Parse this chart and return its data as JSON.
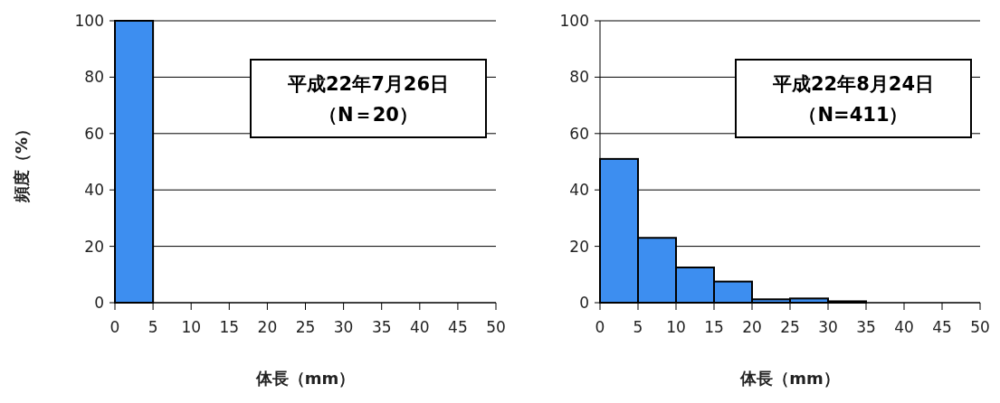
{
  "chart_data": [
    {
      "type": "histogram",
      "bins": [
        0,
        5,
        10,
        15,
        20,
        25,
        30,
        35,
        40,
        45,
        50
      ],
      "values": [
        100,
        0,
        0,
        0,
        0,
        0,
        0,
        0,
        0,
        0
      ],
      "color": "#3d8ef0",
      "xlim": [
        0,
        50
      ],
      "xticks": [
        0,
        5,
        10,
        15,
        20,
        25,
        30,
        35,
        40,
        45,
        50
      ],
      "ylim": [
        0,
        100
      ],
      "yticks": [
        0,
        20,
        40,
        60,
        80,
        100
      ],
      "grid": "y",
      "xlabel": "体長（mm）",
      "ylabel": "頻度（%）",
      "annotations": [
        "平成22年7月26日",
        "（N＝20）"
      ]
    },
    {
      "type": "histogram",
      "bins": [
        0,
        5,
        10,
        15,
        20,
        25,
        30,
        35,
        40,
        45,
        50
      ],
      "values": [
        51,
        23,
        12.5,
        7.5,
        1.2,
        1.5,
        0.5,
        0,
        0,
        0
      ],
      "color": "#3d8ef0",
      "xlim": [
        0,
        50
      ],
      "xticks": [
        0,
        5,
        10,
        15,
        20,
        25,
        30,
        35,
        40,
        45,
        50
      ],
      "ylim": [
        0,
        100
      ],
      "yticks": [
        0,
        20,
        40,
        60,
        80,
        100
      ],
      "grid": "y",
      "xlabel": "体長（mm）",
      "annotations": [
        "平成22年8月24日",
        "（N=411）"
      ]
    }
  ]
}
